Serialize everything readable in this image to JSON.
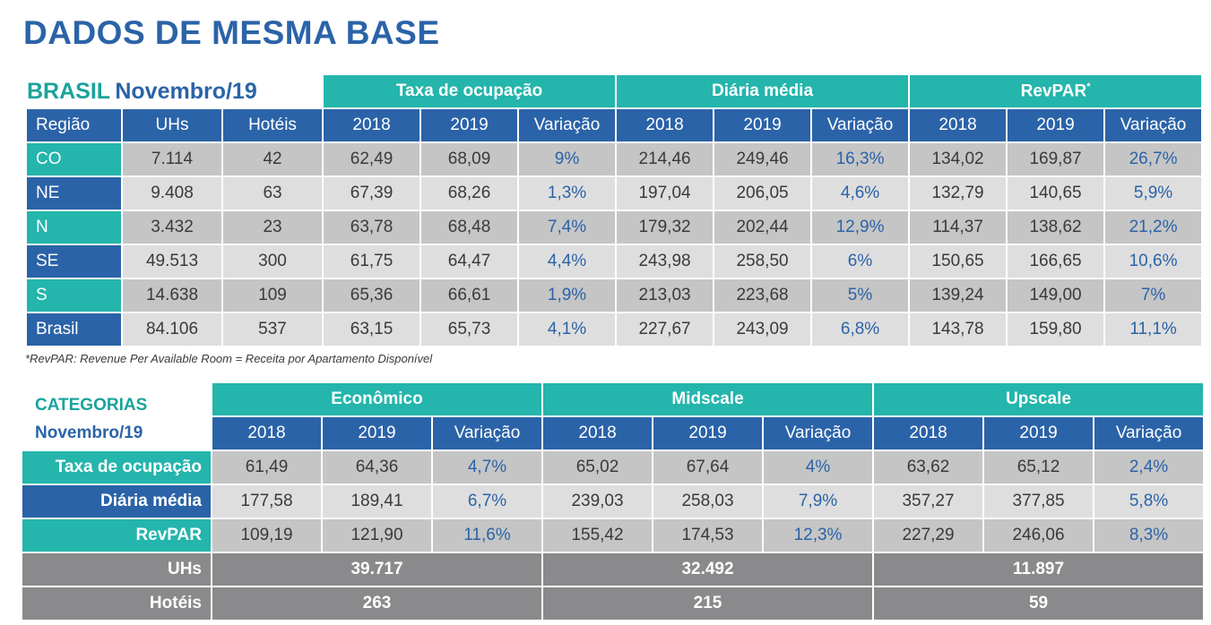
{
  "title": "DADOS DE MESMA BASE",
  "brasil": {
    "label_a": "BRASIL",
    "label_b": "Novembro/19",
    "groups": [
      "Taxa de ocupação",
      "Diária média",
      "RevPAR"
    ],
    "revpar_mark": "*",
    "headers": [
      "Região",
      "UHs",
      "Hotéis",
      "2018",
      "2019",
      "Variação",
      "2018",
      "2019",
      "Variação",
      "2018",
      "2019",
      "Variação"
    ],
    "rows": [
      {
        "region": "CO",
        "cells": [
          "7.114",
          "42",
          "62,49",
          "68,09",
          "9%",
          "214,46",
          "249,46",
          "16,3%",
          "134,02",
          "169,87",
          "26,7%"
        ]
      },
      {
        "region": "NE",
        "cells": [
          "9.408",
          "63",
          "67,39",
          "68,26",
          "1,3%",
          "197,04",
          "206,05",
          "4,6%",
          "132,79",
          "140,65",
          "5,9%"
        ]
      },
      {
        "region": "N",
        "cells": [
          "3.432",
          "23",
          "63,78",
          "68,48",
          "7,4%",
          "179,32",
          "202,44",
          "12,9%",
          "114,37",
          "138,62",
          "21,2%"
        ]
      },
      {
        "region": "SE",
        "cells": [
          "49.513",
          "300",
          "61,75",
          "64,47",
          "4,4%",
          "243,98",
          "258,50",
          "6%",
          "150,65",
          "166,65",
          "10,6%"
        ]
      },
      {
        "region": "S",
        "cells": [
          "14.638",
          "109",
          "65,36",
          "66,61",
          "1,9%",
          "213,03",
          "223,68",
          "5%",
          "139,24",
          "149,00",
          "7%"
        ]
      },
      {
        "region": "Brasil",
        "cells": [
          "84.106",
          "537",
          "63,15",
          "65,73",
          "4,1%",
          "227,67",
          "243,09",
          "6,8%",
          "143,78",
          "159,80",
          "11,1%"
        ]
      }
    ]
  },
  "footnote": "*RevPAR: Revenue Per Available Room = Receita por Apartamento Disponível",
  "categorias": {
    "label_a": "CATEGORIAS",
    "label_b": "Novembro/19",
    "groups": [
      "Econômico",
      "Midscale",
      "Upscale"
    ],
    "headers": [
      "2018",
      "2019",
      "Variação",
      "2018",
      "2019",
      "Variação",
      "2018",
      "2019",
      "Variação"
    ],
    "rows": [
      {
        "label": "Taxa de ocupação",
        "cells": [
          "61,49",
          "64,36",
          "4,7%",
          "65,02",
          "67,64",
          "4%",
          "63,62",
          "65,12",
          "2,4%"
        ]
      },
      {
        "label": "Diária média",
        "cells": [
          "177,58",
          "189,41",
          "6,7%",
          "239,03",
          "258,03",
          "7,9%",
          "357,27",
          "377,85",
          "5,8%"
        ]
      },
      {
        "label": "RevPAR",
        "cells": [
          "109,19",
          "121,90",
          "11,6%",
          "155,42",
          "174,53",
          "12,3%",
          "227,29",
          "246,06",
          "8,3%"
        ]
      }
    ],
    "totals": [
      {
        "label": "UHs",
        "cells": [
          "39.717",
          "32.492",
          "11.897"
        ]
      },
      {
        "label": "Hotéis",
        "cells": [
          "263",
          "215",
          "59"
        ]
      }
    ]
  }
}
